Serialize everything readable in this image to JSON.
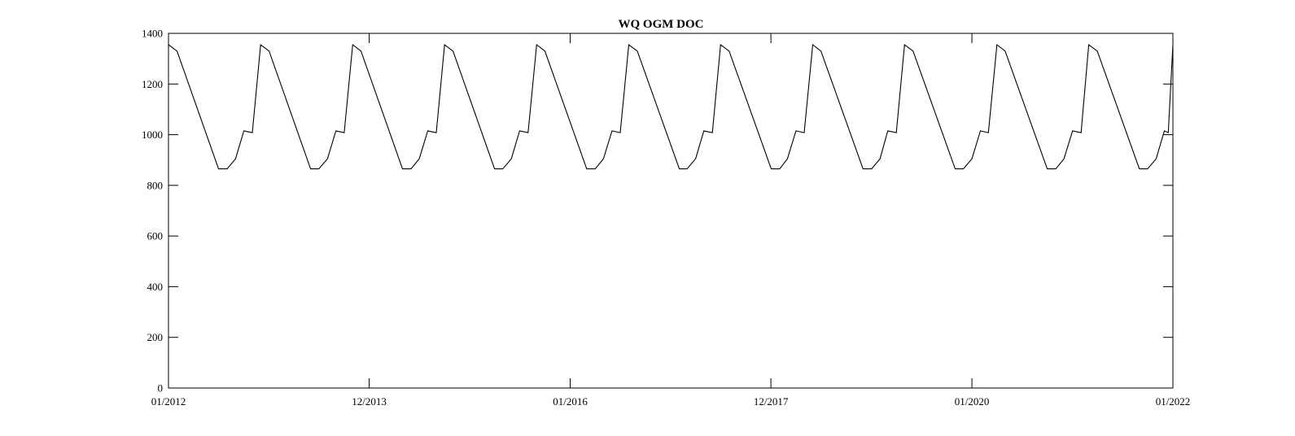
{
  "chart_data": {
    "type": "line",
    "title": "WQ OGM DOC",
    "xlabel": "",
    "ylabel": "",
    "grid": false,
    "legend": "none",
    "ylim": [
      0,
      1400
    ],
    "xlim": [
      "2012-01-01",
      "2022-01-01"
    ],
    "yticks": [
      0,
      200,
      400,
      600,
      800,
      1000,
      1200,
      1400
    ],
    "xticks": [
      {
        "date": "2012-01-01",
        "label": "01/2012"
      },
      {
        "date": "2013-12-31",
        "label": "12/2013"
      },
      {
        "date": "2016-01-01",
        "label": "01/2016"
      },
      {
        "date": "2017-12-31",
        "label": "12/2017"
      },
      {
        "date": "2020-01-01",
        "label": "01/2020"
      },
      {
        "date": "2022-01-01",
        "label": "01/2022"
      }
    ],
    "series": [
      {
        "color": "#000000",
        "points": [
          [
            "2012-01-01",
            1355
          ],
          [
            "2012-02-01",
            1330
          ],
          [
            "2012-07-01",
            865
          ],
          [
            "2012-08-01",
            865
          ],
          [
            "2012-09-01",
            905
          ],
          [
            "2012-10-01",
            1015
          ],
          [
            "2012-11-01",
            1008
          ],
          [
            "2012-12-01",
            1355
          ],
          [
            "2013-01-01",
            1330
          ],
          [
            "2013-06-01",
            865
          ],
          [
            "2013-07-01",
            865
          ],
          [
            "2013-08-01",
            905
          ],
          [
            "2013-09-01",
            1015
          ],
          [
            "2013-10-01",
            1008
          ],
          [
            "2013-11-01",
            1355
          ],
          [
            "2013-12-01",
            1330
          ],
          [
            "2014-05-01",
            865
          ],
          [
            "2014-06-01",
            865
          ],
          [
            "2014-07-01",
            905
          ],
          [
            "2014-08-01",
            1015
          ],
          [
            "2014-09-01",
            1008
          ],
          [
            "2014-10-01",
            1355
          ],
          [
            "2014-11-01",
            1330
          ],
          [
            "2015-04-01",
            865
          ],
          [
            "2015-05-01",
            865
          ],
          [
            "2015-06-01",
            905
          ],
          [
            "2015-07-01",
            1015
          ],
          [
            "2015-08-01",
            1008
          ],
          [
            "2015-09-01",
            1355
          ],
          [
            "2015-10-01",
            1330
          ],
          [
            "2016-03-01",
            865
          ],
          [
            "2016-04-01",
            865
          ],
          [
            "2016-05-01",
            905
          ],
          [
            "2016-06-01",
            1015
          ],
          [
            "2016-07-01",
            1008
          ],
          [
            "2016-08-01",
            1355
          ],
          [
            "2016-09-01",
            1330
          ],
          [
            "2017-02-01",
            865
          ],
          [
            "2017-03-01",
            865
          ],
          [
            "2017-04-01",
            905
          ],
          [
            "2017-05-01",
            1015
          ],
          [
            "2017-06-01",
            1008
          ],
          [
            "2017-07-01",
            1355
          ],
          [
            "2017-08-01",
            1330
          ],
          [
            "2018-01-01",
            865
          ],
          [
            "2018-02-01",
            865
          ],
          [
            "2018-03-01",
            905
          ],
          [
            "2018-04-01",
            1015
          ],
          [
            "2018-05-01",
            1008
          ],
          [
            "2018-06-01",
            1355
          ],
          [
            "2018-07-01",
            1330
          ],
          [
            "2018-12-01",
            865
          ],
          [
            "2019-01-01",
            865
          ],
          [
            "2019-02-01",
            905
          ],
          [
            "2019-03-01",
            1015
          ],
          [
            "2019-04-01",
            1008
          ],
          [
            "2019-05-01",
            1355
          ],
          [
            "2019-06-01",
            1330
          ],
          [
            "2019-11-01",
            865
          ],
          [
            "2019-12-01",
            865
          ],
          [
            "2020-01-01",
            905
          ],
          [
            "2020-02-01",
            1015
          ],
          [
            "2020-03-01",
            1008
          ],
          [
            "2020-04-01",
            1355
          ],
          [
            "2020-05-01",
            1330
          ],
          [
            "2020-10-01",
            865
          ],
          [
            "2020-11-01",
            865
          ],
          [
            "2020-12-01",
            905
          ],
          [
            "2021-01-01",
            1015
          ],
          [
            "2021-02-01",
            1008
          ],
          [
            "2021-03-01",
            1355
          ],
          [
            "2021-04-01",
            1330
          ],
          [
            "2021-09-01",
            865
          ],
          [
            "2021-10-01",
            865
          ],
          [
            "2021-11-01",
            905
          ],
          [
            "2021-12-01",
            1015
          ],
          [
            "2021-12-15",
            1008
          ],
          [
            "2022-01-01",
            1355
          ]
        ]
      }
    ]
  }
}
